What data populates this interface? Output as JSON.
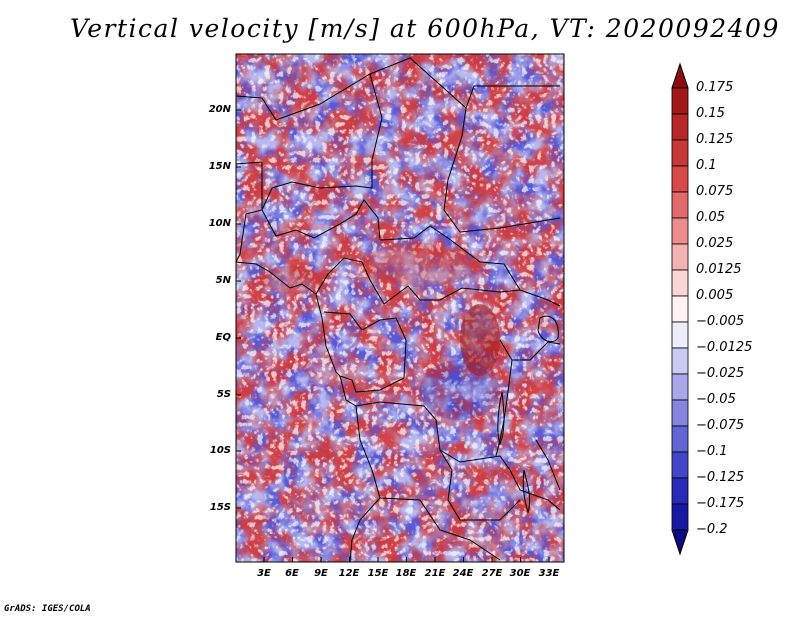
{
  "title": "Vertical velocity [m/s] at 600hPa, VT: 2020092409",
  "credit": "GrADS: IGES/COLA",
  "map": {
    "lat_labels": [
      "20N",
      "15N",
      "10N",
      "5N",
      "EQ",
      "5S",
      "10S",
      "15S"
    ],
    "lon_labels": [
      "3E",
      "6E",
      "9E",
      "12E",
      "15E",
      "18E",
      "21E",
      "24E",
      "27E",
      "30E",
      "33E"
    ],
    "lat_range": [
      -19.5,
      24.5
    ],
    "lon_range": [
      0,
      34.5
    ],
    "region": "Central Africa"
  },
  "colorbar": {
    "labels": [
      "0.175",
      "0.15",
      "0.125",
      "0.1",
      "0.075",
      "0.05",
      "0.025",
      "0.0125",
      "0.005",
      "−0.005",
      "−0.0125",
      "−0.025",
      "−0.05",
      "−0.075",
      "−0.1",
      "−0.125",
      "−0.175",
      "−0.2"
    ],
    "colors": [
      "#8b0d0d",
      "#a31919",
      "#b82626",
      "#c93838",
      "#d84a4a",
      "#e26a6a",
      "#ec8c8c",
      "#f4b3b3",
      "#f9d7d7",
      "#fff2f2",
      "#ececfb",
      "#cacaf2",
      "#a8a8ea",
      "#8585df",
      "#6464d6",
      "#4545c9",
      "#2a2ab8",
      "#1818a2",
      "#0c0c82"
    ]
  }
}
